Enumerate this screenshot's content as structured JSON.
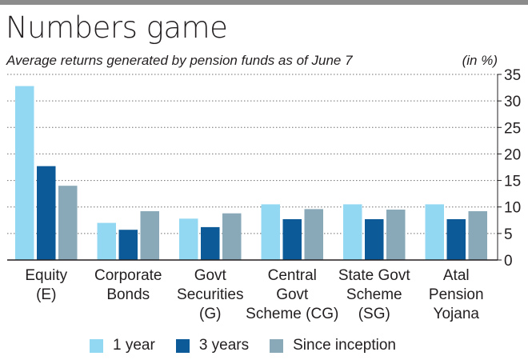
{
  "title": "Numbers game",
  "subtitle": "Average returns generated by pension funds as of June 7",
  "unit": "(in %)",
  "colors": {
    "one_year": "#93d8f2",
    "three_years": "#0d5a98",
    "since_inception": "#89a9b8",
    "axis": "#231f20",
    "grid": "#6d6e71"
  },
  "chart_data": {
    "type": "bar",
    "categories": [
      [
        "Equity",
        "(E)"
      ],
      [
        "Corporate",
        "Bonds"
      ],
      [
        "Govt",
        "Securities",
        "(G)"
      ],
      [
        "Central",
        "Govt",
        "Scheme (CG)"
      ],
      [
        "State Govt",
        "Scheme",
        "(SG)"
      ],
      [
        "Atal",
        "Pension",
        "Yojana"
      ]
    ],
    "series": [
      {
        "name": "1 year",
        "values": [
          32.8,
          7.0,
          7.8,
          10.5,
          10.5,
          10.5
        ]
      },
      {
        "name": "3 years",
        "values": [
          17.7,
          5.7,
          6.2,
          7.7,
          7.7,
          7.7
        ]
      },
      {
        "name": "Since inception",
        "values": [
          14.0,
          9.2,
          8.8,
          9.6,
          9.5,
          9.2
        ]
      }
    ],
    "yticks": [
      0,
      5,
      10,
      15,
      20,
      25,
      30,
      35
    ],
    "ylim": [
      0,
      35
    ],
    "grid": true,
    "axis_side": "right",
    "legend_position": "bottom"
  }
}
